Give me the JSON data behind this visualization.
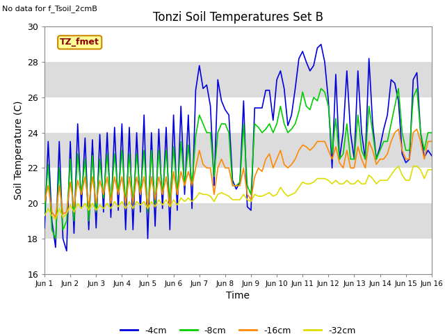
{
  "title": "Tonzi Soil Temperatures Set B",
  "no_data_label": "No data for f_Tsoil_2cmB",
  "tz_fmet_label": "TZ_fmet",
  "xlabel": "Time",
  "ylabel": "Soil Temperature (C)",
  "ylim": [
    16,
    30
  ],
  "xlim": [
    0,
    15
  ],
  "xtick_labels": [
    "Jun 1",
    "Jun 2",
    "Jun 3",
    "Jun 4",
    "Jun 5",
    "Jun 6",
    "Jun 7",
    "Jun 8",
    "Jun 9",
    "Jun 10",
    "Jun 11",
    "Jun 12",
    "Jun 13",
    "Jun 14",
    "Jun 15",
    "Jun 16"
  ],
  "ytick_values": [
    16,
    18,
    20,
    22,
    24,
    26,
    28,
    30
  ],
  "background_color": "#ffffff",
  "plot_bg_color": "#dcdcdc",
  "legend_entries": [
    "-4cm",
    "-8cm",
    "-16cm",
    "-32cm"
  ],
  "line_colors": [
    "#0000dd",
    "#00cc00",
    "#ff8800",
    "#dddd00"
  ],
  "data_4cm": [
    18.6,
    23.5,
    19.0,
    17.5,
    23.5,
    18.0,
    17.3,
    23.5,
    18.3,
    24.5,
    19.8,
    23.7,
    18.5,
    23.6,
    18.6,
    23.9,
    19.5,
    24.0,
    19.2,
    24.3,
    19.6,
    24.5,
    18.5,
    24.3,
    18.5,
    24.0,
    19.5,
    25.0,
    18.0,
    24.0,
    18.7,
    24.2,
    19.7,
    24.3,
    18.5,
    25.0,
    19.6,
    25.5,
    20.5,
    25.0,
    19.7,
    26.4,
    27.8,
    26.5,
    26.7,
    25.5,
    21.0,
    27.0,
    25.8,
    25.3,
    25.0,
    21.3,
    20.8,
    21.2,
    25.8,
    19.8,
    19.6,
    25.4,
    25.4,
    25.4,
    26.4,
    26.4,
    24.7,
    27.0,
    27.5,
    26.5,
    24.4,
    25.0,
    26.5,
    28.2,
    28.6,
    28.0,
    27.5,
    27.8,
    28.8,
    29.0,
    28.0,
    25.8,
    22.0,
    27.3,
    22.5,
    24.0,
    27.5,
    24.0,
    22.5,
    27.5,
    24.0,
    22.5,
    28.2,
    24.5,
    22.5,
    23.2,
    24.2,
    25.0,
    27.0,
    26.8,
    25.8,
    22.8,
    22.3,
    22.5,
    27.0,
    27.4,
    24.0,
    22.6,
    23.0,
    22.7
  ],
  "data_8cm": [
    19.5,
    22.2,
    18.5,
    18.0,
    22.0,
    18.5,
    19.0,
    22.5,
    19.0,
    22.8,
    20.5,
    22.5,
    19.0,
    22.7,
    19.5,
    22.5,
    20.3,
    22.8,
    20.0,
    22.8,
    20.5,
    23.0,
    20.0,
    22.8,
    20.0,
    22.8,
    20.5,
    23.0,
    19.5,
    23.0,
    20.0,
    23.0,
    20.5,
    23.0,
    20.0,
    23.2,
    20.5,
    23.5,
    21.0,
    23.3,
    21.0,
    23.8,
    25.0,
    24.5,
    24.0,
    24.0,
    21.5,
    24.0,
    24.5,
    24.5,
    24.0,
    21.0,
    21.0,
    21.2,
    24.5,
    21.0,
    20.5,
    24.5,
    24.3,
    24.0,
    24.2,
    24.5,
    24.0,
    24.5,
    25.5,
    24.5,
    24.0,
    24.2,
    24.5,
    25.2,
    26.3,
    25.5,
    25.3,
    26.0,
    25.8,
    26.5,
    26.3,
    25.5,
    22.8,
    24.8,
    22.5,
    22.8,
    24.5,
    22.5,
    22.5,
    25.0,
    23.0,
    22.5,
    25.5,
    24.0,
    22.5,
    23.0,
    23.5,
    23.5,
    24.5,
    25.5,
    26.5,
    24.0,
    23.0,
    23.0,
    26.0,
    26.5,
    24.0,
    23.0,
    24.0,
    24.0
  ],
  "data_16cm": [
    20.1,
    21.0,
    19.5,
    19.2,
    21.0,
    19.4,
    19.5,
    21.2,
    19.8,
    21.3,
    20.5,
    21.5,
    19.8,
    21.5,
    20.0,
    21.3,
    20.5,
    21.5,
    20.0,
    21.5,
    20.5,
    21.5,
    20.0,
    21.5,
    20.0,
    21.5,
    20.5,
    21.5,
    19.8,
    21.5,
    20.2,
    21.5,
    20.5,
    21.5,
    19.8,
    21.8,
    20.5,
    21.8,
    21.0,
    21.8,
    21.0,
    22.0,
    23.0,
    22.2,
    22.0,
    22.0,
    20.5,
    22.0,
    22.5,
    22.0,
    22.0,
    21.0,
    21.0,
    21.0,
    22.0,
    20.5,
    20.2,
    21.5,
    22.0,
    21.8,
    22.5,
    22.8,
    22.0,
    22.5,
    23.0,
    22.2,
    22.0,
    22.2,
    22.5,
    23.0,
    23.3,
    23.2,
    23.0,
    23.2,
    23.5,
    23.5,
    23.5,
    23.0,
    22.5,
    23.2,
    22.3,
    22.0,
    23.0,
    22.0,
    22.0,
    23.2,
    22.5,
    22.0,
    23.5,
    23.0,
    22.2,
    22.5,
    22.5,
    22.8,
    23.5,
    24.0,
    24.2,
    23.0,
    22.5,
    22.5,
    24.0,
    24.2,
    23.5,
    22.5,
    23.5,
    23.5
  ],
  "data_32cm": [
    19.3,
    19.7,
    19.3,
    19.1,
    19.7,
    19.2,
    19.4,
    19.9,
    19.5,
    20.0,
    19.7,
    20.0,
    19.6,
    20.0,
    19.6,
    19.9,
    19.7,
    20.0,
    19.7,
    20.1,
    19.8,
    20.1,
    19.7,
    20.1,
    19.7,
    20.1,
    19.9,
    20.1,
    19.7,
    20.1,
    19.8,
    20.2,
    19.9,
    20.2,
    19.8,
    20.2,
    19.9,
    20.3,
    20.1,
    20.3,
    20.1,
    20.3,
    20.6,
    20.5,
    20.5,
    20.4,
    20.1,
    20.5,
    20.6,
    20.5,
    20.4,
    20.2,
    20.2,
    20.2,
    20.5,
    20.2,
    20.1,
    20.5,
    20.4,
    20.4,
    20.5,
    20.6,
    20.4,
    20.5,
    20.9,
    20.6,
    20.4,
    20.5,
    20.6,
    20.9,
    21.2,
    21.1,
    21.1,
    21.2,
    21.4,
    21.4,
    21.4,
    21.3,
    21.1,
    21.3,
    21.1,
    21.1,
    21.3,
    21.1,
    21.1,
    21.3,
    21.1,
    21.1,
    21.6,
    21.4,
    21.1,
    21.3,
    21.3,
    21.3,
    21.6,
    21.9,
    22.1,
    21.6,
    21.3,
    21.3,
    22.1,
    22.1,
    21.9,
    21.4,
    21.9,
    21.9
  ]
}
